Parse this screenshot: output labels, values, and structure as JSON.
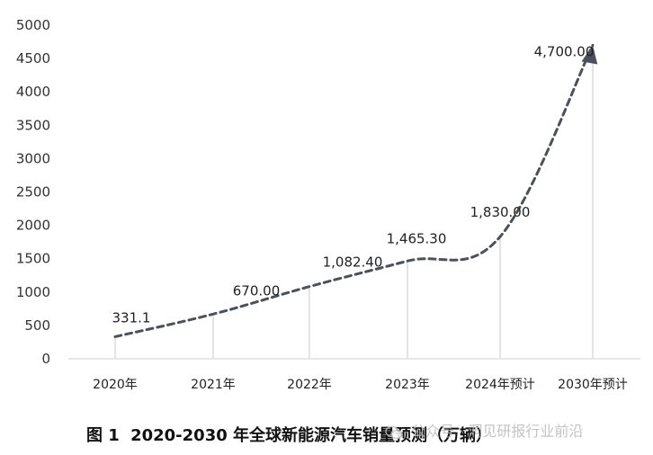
{
  "chart_data": {
    "type": "line",
    "categories": [
      "2020年",
      "2021年",
      "2022年",
      "2023年",
      "2024年预计",
      "2030年预计"
    ],
    "values": [
      331.1,
      670.0,
      1082.4,
      1465.3,
      1830.0,
      4700.0
    ],
    "data_labels": [
      "331.1",
      "670.00",
      "1,082.40",
      "1,465.30",
      "1,830.00",
      "4,700.00"
    ],
    "y_ticks": [
      "0",
      "500",
      "1000",
      "1500",
      "2000",
      "2500",
      "3000",
      "3500",
      "4000",
      "4500",
      "5000"
    ],
    "ylim": [
      0,
      5000
    ],
    "line_style": "dashed",
    "line_color": "#4a505c",
    "drop_line_color": "#e4e4e4",
    "grid": false,
    "legend": "none",
    "end_marker": "arrow"
  },
  "caption": {
    "figure_label": "图 1",
    "text": "2020-2030 年全球新能源汽车销量预测（万辆）"
  },
  "watermark": {
    "text": "公众号 · 洞见研报行业前沿"
  }
}
